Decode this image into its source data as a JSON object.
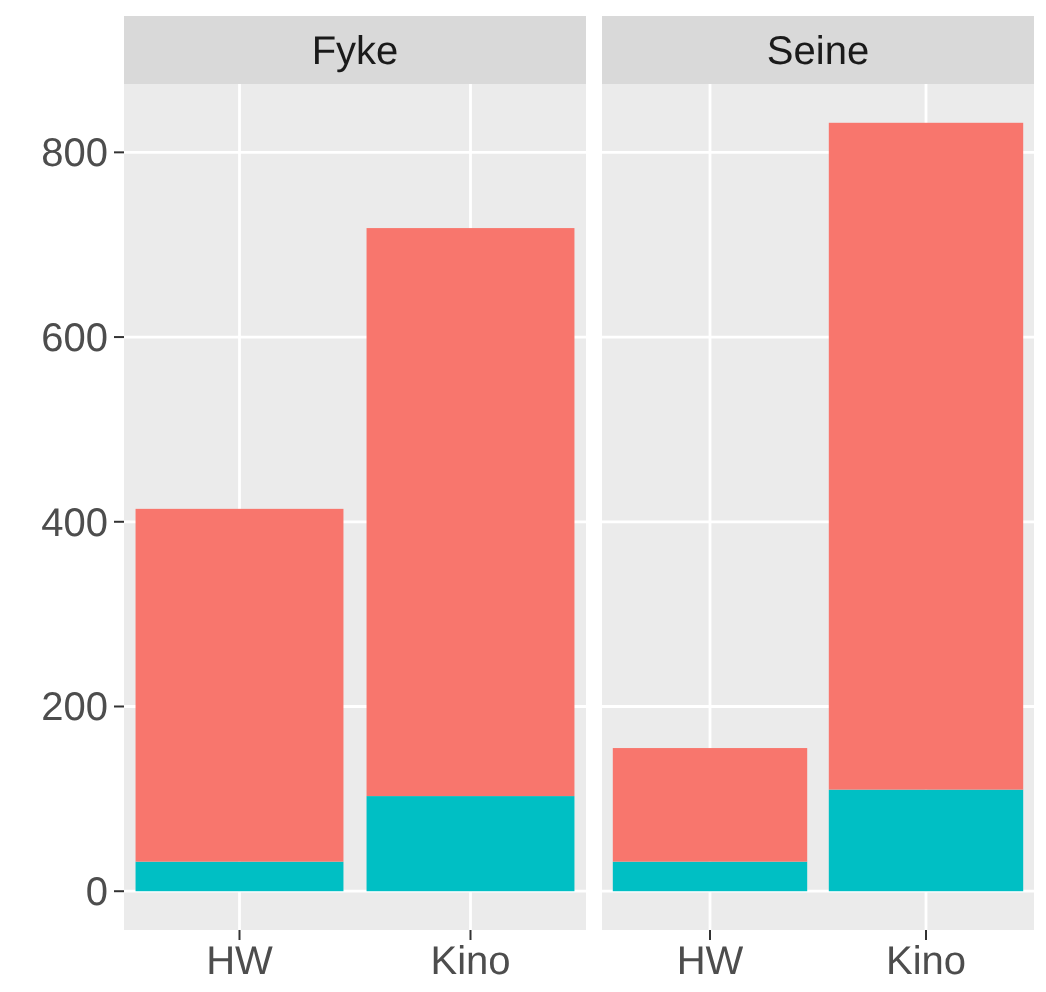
{
  "chart_data": [
    {
      "type": "bar",
      "title": "Fyke",
      "categories": [
        "HW",
        "Kino"
      ],
      "stacked": true,
      "grid": true,
      "ylim": [
        -42,
        874
      ],
      "yticks": [
        0,
        200,
        400,
        600,
        800
      ],
      "series": [
        {
          "color": "#00bfc4",
          "values": [
            32,
            103
          ]
        },
        {
          "color": "#f8766d",
          "values": [
            382,
            615
          ]
        }
      ]
    },
    {
      "type": "bar",
      "title": "Seine",
      "categories": [
        "HW",
        "Kino"
      ],
      "stacked": true,
      "grid": true,
      "tick_labels": "x",
      "ylim": [
        -42,
        874
      ],
      "yticks": [
        0,
        200,
        400,
        600,
        800
      ],
      "series": [
        {
          "color": "#00bfc4",
          "values": [
            32,
            110
          ]
        },
        {
          "color": "#f8766d",
          "values": [
            123,
            722
          ]
        }
      ]
    }
  ]
}
